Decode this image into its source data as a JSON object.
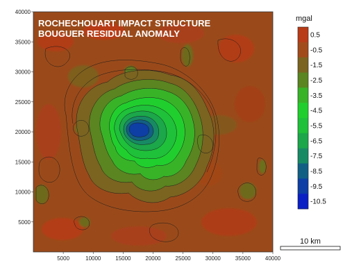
{
  "map": {
    "title_line1": "ROCHECHOUART IMPACT STRUCTURE",
    "title_line2": "BOUGUER RESIDUAL ANOMALY",
    "x_ticks": [
      "5000",
      "10000",
      "15000",
      "20000",
      "25000",
      "30000",
      "35000",
      "40000"
    ],
    "y_ticks": [
      "5000",
      "10000",
      "15000",
      "20000",
      "25000",
      "30000",
      "35000",
      "40000"
    ],
    "extent": {
      "x": [
        0,
        40000
      ],
      "y": [
        0,
        40000
      ]
    }
  },
  "legend": {
    "unit": "mgal",
    "levels": [
      "0.5",
      "-0.5",
      "-1.5",
      "-2.5",
      "-3.5",
      "-4.5",
      "-5.5",
      "-6.5",
      "-7.5",
      "-8.5",
      "-9.5",
      "-10.5"
    ],
    "colors": [
      "#b83c18",
      "#a24b1a",
      "#7a6420",
      "#5a8520",
      "#38b328",
      "#20cf2d",
      "#1fc03a",
      "#1ba74a",
      "#178a64",
      "#125f84",
      "#0d3fa4",
      "#0a20c4"
    ]
  },
  "scale_bar": {
    "label": "10 km"
  }
}
